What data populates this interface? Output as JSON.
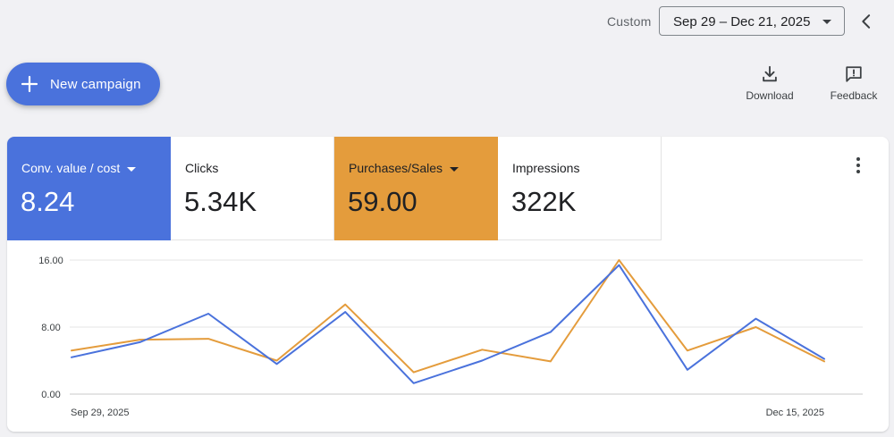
{
  "header": {
    "range_label": "Custom",
    "date_range": "Sep 29 – Dec 21, 2025"
  },
  "actions": {
    "new_campaign": "New campaign",
    "download": "Download",
    "feedback": "Feedback"
  },
  "metrics": [
    {
      "name": "Conv. value / cost",
      "value": "8.24",
      "color": "#4a72dc",
      "selected": true,
      "dropdown": true
    },
    {
      "name": "Clicks",
      "value": "5.34K",
      "selected": false,
      "dropdown": false
    },
    {
      "name": "Purchases/Sales",
      "value": "59.00",
      "color": "#e49c3c",
      "selected": true,
      "dropdown": true
    },
    {
      "name": "Impressions",
      "value": "322K",
      "selected": false,
      "dropdown": false
    }
  ],
  "icons": {
    "back": "chevron-left-icon",
    "download": "download-icon",
    "feedback": "feedback-icon",
    "menu": "more-vert-icon",
    "add": "plus-icon"
  },
  "chart_data": {
    "type": "line",
    "x": [
      "Sep 29, 2025",
      "",
      "",
      "",
      "",
      "",
      "",
      "",
      "",
      "",
      "",
      "Dec 15, 2025"
    ],
    "x_tick_labels": [
      "Sep 29, 2025",
      "Dec 15, 2025"
    ],
    "y_ticks": [
      "0.00",
      "8.00",
      "16.00"
    ],
    "ylim": [
      0,
      16
    ],
    "grid": true,
    "series": [
      {
        "color": "#4a72dc",
        "values": [
          4.4,
          6.2,
          9.6,
          3.6,
          9.8,
          1.3,
          4.0,
          7.4,
          15.4,
          2.9,
          9.0,
          4.2
        ]
      },
      {
        "color": "#e49c3c",
        "values": [
          5.2,
          6.5,
          6.6,
          4.0,
          10.7,
          2.6,
          5.3,
          3.9,
          16.0,
          5.2,
          8.0,
          3.9
        ]
      }
    ]
  }
}
